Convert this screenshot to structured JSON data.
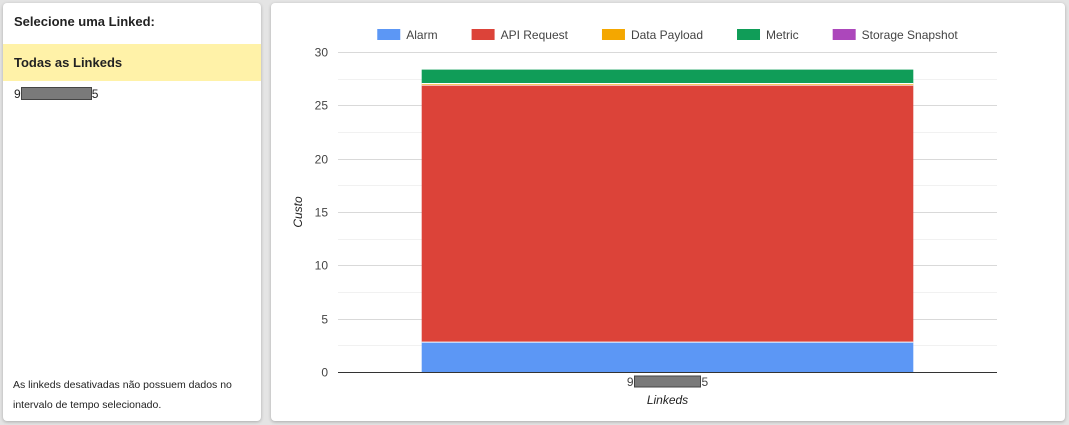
{
  "sidebar": {
    "title": "Selecione uma Linked:",
    "items": [
      {
        "label": "Todas as Linkeds",
        "selected": true
      },
      {
        "prefix": "9",
        "suffix": "5",
        "selected": false
      }
    ],
    "selected_color": "#fff2a8",
    "footer": "As linkeds desativadas não possuem dados no intervalo de tempo selecionado."
  },
  "chart_data": {
    "type": "bar",
    "stacked": true,
    "categories": [
      {
        "prefix": "9",
        "suffix": "5"
      }
    ],
    "series": [
      {
        "name": "Alarm",
        "color": "#5c97f5",
        "values": [
          2.8
        ]
      },
      {
        "name": "API Request",
        "color": "#dc4339",
        "values": [
          24.1
        ]
      },
      {
        "name": "Data Payload",
        "color": "#f4a700",
        "values": [
          0.15
        ]
      },
      {
        "name": "Metric",
        "color": "#109d58",
        "values": [
          1.3
        ]
      },
      {
        "name": "Storage Snapshot",
        "color": "#ac47bb",
        "values": [
          0
        ]
      }
    ],
    "yticks": [
      0,
      5,
      10,
      15,
      20,
      25,
      30
    ],
    "ylim": [
      0,
      30
    ],
    "xlabel": "Linkeds",
    "ylabel": "Custo",
    "grid": true,
    "legend_position": "top"
  }
}
